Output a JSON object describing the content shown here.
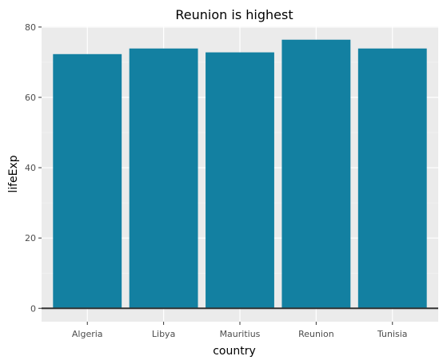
{
  "chart_data": {
    "type": "bar",
    "title": "Reunion is highest",
    "xlabel": "country",
    "ylabel": "lifeExp",
    "categories": [
      "Algeria",
      "Libya",
      "Mauritius",
      "Reunion",
      "Tunisia"
    ],
    "values": [
      72.3,
      73.9,
      72.8,
      76.4,
      73.9
    ],
    "ylim": [
      -3.8,
      80.2
    ],
    "yticks": [
      0,
      20,
      40,
      60,
      80
    ],
    "grid": true,
    "bar_color": "#1380A1",
    "panel_color": "#EBEBEB",
    "baseline_color": "#333333"
  }
}
